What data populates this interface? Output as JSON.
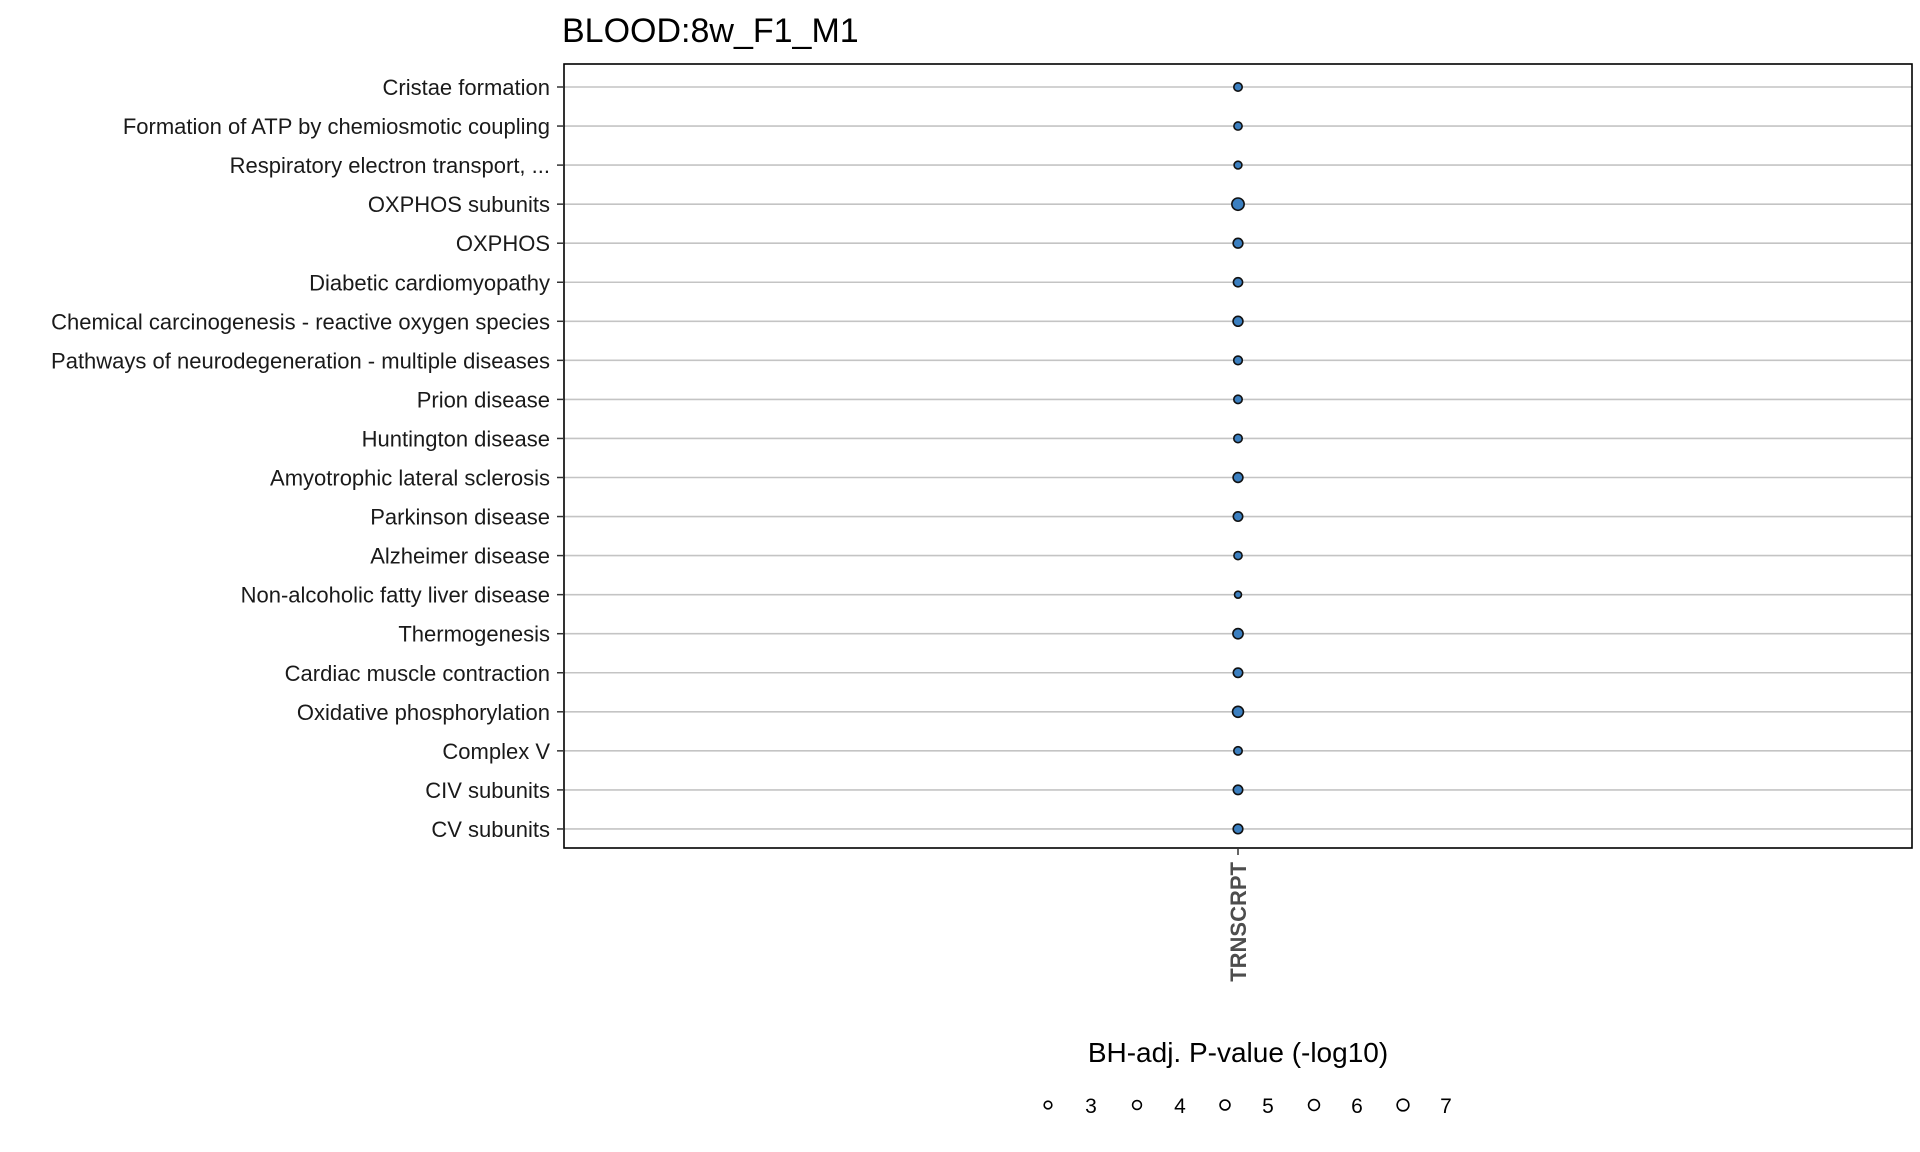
{
  "chart_data": {
    "type": "scatter",
    "title": "BLOOD:8w_F1_M1",
    "categories": [
      "Cristae formation",
      "Formation of ATP by chemiosmotic coupling",
      "Respiratory electron transport, ...",
      "OXPHOS subunits",
      "OXPHOS",
      "Diabetic cardiomyopathy",
      "Chemical carcinogenesis - reactive oxygen species",
      "Pathways of neurodegeneration - multiple diseases",
      "Prion disease",
      "Huntington disease",
      "Amyotrophic lateral sclerosis",
      "Parkinson disease",
      "Alzheimer disease",
      "Non-alcoholic fatty liver disease",
      "Thermogenesis",
      "Cardiac muscle contraction",
      "Oxidative phosphorylation",
      "Complex V",
      "CIV subunits",
      "CV subunits"
    ],
    "x_categories": [
      "TRNSCRPT"
    ],
    "series": [
      {
        "x": "TRNSCRPT",
        "values": [
          3.6,
          3.4,
          3.1,
          7.7,
          4.8,
          4.3,
          5.0,
          3.8,
          3.6,
          3.6,
          4.9,
          4.5,
          3.4,
          2.5,
          5.3,
          4.5,
          6.1,
          3.6,
          4.5,
          4.7
        ]
      }
    ],
    "point_color": "#3B7FC0",
    "size_legend": {
      "title": "BH-adj. P-value (-log10)",
      "breaks": [
        3,
        4,
        5,
        6,
        7
      ]
    },
    "grid": "horizontal"
  }
}
